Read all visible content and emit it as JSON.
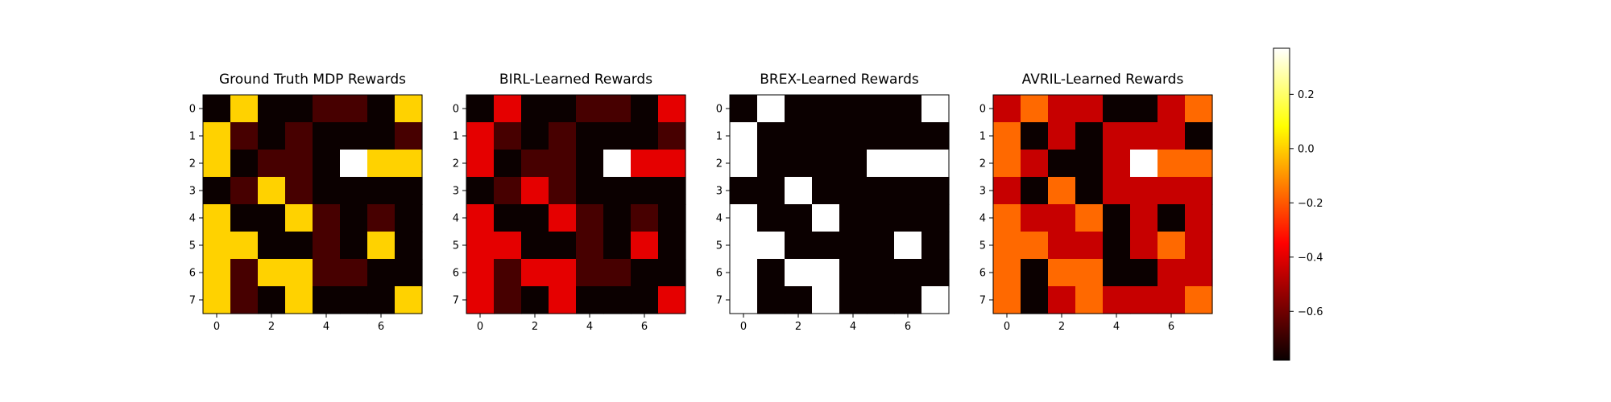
{
  "chart_data": {
    "type": "heatmap",
    "colormap": "hot",
    "vmin": -0.78,
    "vmax": 0.37,
    "x_ticks": [
      0,
      2,
      4,
      6
    ],
    "y_ticks": [
      0,
      1,
      2,
      3,
      4,
      5,
      6,
      7
    ],
    "colorbar": {
      "ticks": [
        0.2,
        0.0,
        -0.2,
        -0.4,
        -0.6
      ],
      "tick_labels": [
        "0.2",
        "0.0",
        "−0.2",
        "−0.4",
        "−0.6"
      ]
    },
    "panels": [
      {
        "title": "Ground Truth MDP Rewards",
        "values": [
          [
            -0.78,
            0.0,
            -0.78,
            -0.78,
            -0.68,
            -0.68,
            -0.78,
            0.0
          ],
          [
            0.0,
            -0.68,
            -0.78,
            -0.68,
            -0.78,
            -0.78,
            -0.78,
            -0.68
          ],
          [
            0.0,
            -0.78,
            -0.68,
            -0.68,
            -0.78,
            0.37,
            0.0,
            0.0
          ],
          [
            -0.78,
            -0.68,
            0.0,
            -0.68,
            -0.78,
            -0.78,
            -0.78,
            -0.78
          ],
          [
            0.0,
            -0.78,
            -0.78,
            0.0,
            -0.68,
            -0.78,
            -0.68,
            -0.78
          ],
          [
            0.0,
            0.0,
            -0.78,
            -0.78,
            -0.68,
            -0.78,
            0.0,
            -0.78
          ],
          [
            0.0,
            -0.68,
            0.0,
            0.0,
            -0.68,
            -0.68,
            -0.78,
            -0.78
          ],
          [
            0.0,
            -0.68,
            -0.78,
            0.0,
            -0.78,
            -0.78,
            -0.78,
            0.0
          ]
        ]
      },
      {
        "title": "BIRL-Learned Rewards",
        "values": [
          [
            -0.78,
            -0.42,
            -0.78,
            -0.78,
            -0.68,
            -0.68,
            -0.78,
            -0.42
          ],
          [
            -0.42,
            -0.68,
            -0.78,
            -0.68,
            -0.78,
            -0.78,
            -0.78,
            -0.68
          ],
          [
            -0.42,
            -0.78,
            -0.68,
            -0.68,
            -0.78,
            0.37,
            -0.42,
            -0.42
          ],
          [
            -0.78,
            -0.68,
            -0.42,
            -0.68,
            -0.78,
            -0.78,
            -0.78,
            -0.78
          ],
          [
            -0.42,
            -0.78,
            -0.78,
            -0.42,
            -0.68,
            -0.78,
            -0.68,
            -0.78
          ],
          [
            -0.42,
            -0.42,
            -0.78,
            -0.78,
            -0.68,
            -0.78,
            -0.42,
            -0.78
          ],
          [
            -0.42,
            -0.68,
            -0.42,
            -0.42,
            -0.68,
            -0.68,
            -0.78,
            -0.78
          ],
          [
            -0.42,
            -0.68,
            -0.78,
            -0.42,
            -0.78,
            -0.78,
            -0.78,
            -0.42
          ]
        ]
      },
      {
        "title": "BREX-Learned Rewards",
        "values": [
          [
            -0.78,
            0.37,
            -0.78,
            -0.78,
            -0.78,
            -0.78,
            -0.78,
            0.37
          ],
          [
            0.37,
            -0.78,
            -0.78,
            -0.78,
            -0.78,
            -0.78,
            -0.78,
            -0.78
          ],
          [
            0.37,
            -0.78,
            -0.78,
            -0.78,
            -0.78,
            0.37,
            0.37,
            0.37
          ],
          [
            -0.78,
            -0.78,
            0.37,
            -0.78,
            -0.78,
            -0.78,
            -0.78,
            -0.78
          ],
          [
            0.37,
            -0.78,
            -0.78,
            0.37,
            -0.78,
            -0.78,
            -0.78,
            -0.78
          ],
          [
            0.37,
            0.37,
            -0.78,
            -0.78,
            -0.78,
            -0.78,
            0.37,
            -0.78
          ],
          [
            0.37,
            -0.78,
            0.37,
            0.37,
            -0.78,
            -0.78,
            -0.78,
            -0.78
          ],
          [
            0.37,
            -0.78,
            -0.78,
            0.37,
            -0.78,
            -0.78,
            -0.78,
            0.37
          ]
        ]
      },
      {
        "title": "AVRIL-Learned Rewards",
        "values": [
          [
            -0.47,
            -0.18,
            -0.47,
            -0.47,
            -0.78,
            -0.78,
            -0.47,
            -0.18
          ],
          [
            -0.18,
            -0.78,
            -0.47,
            -0.78,
            -0.47,
            -0.47,
            -0.47,
            -0.78
          ],
          [
            -0.18,
            -0.47,
            -0.78,
            -0.78,
            -0.47,
            0.37,
            -0.18,
            -0.18
          ],
          [
            -0.47,
            -0.78,
            -0.18,
            -0.78,
            -0.47,
            -0.47,
            -0.47,
            -0.47
          ],
          [
            -0.18,
            -0.47,
            -0.47,
            -0.18,
            -0.78,
            -0.47,
            -0.78,
            -0.47
          ],
          [
            -0.18,
            -0.18,
            -0.47,
            -0.47,
            -0.78,
            -0.47,
            -0.18,
            -0.47
          ],
          [
            -0.18,
            -0.78,
            -0.18,
            -0.18,
            -0.78,
            -0.78,
            -0.47,
            -0.47
          ],
          [
            -0.18,
            -0.78,
            -0.47,
            -0.18,
            -0.47,
            -0.47,
            -0.47,
            -0.18
          ]
        ]
      }
    ]
  }
}
